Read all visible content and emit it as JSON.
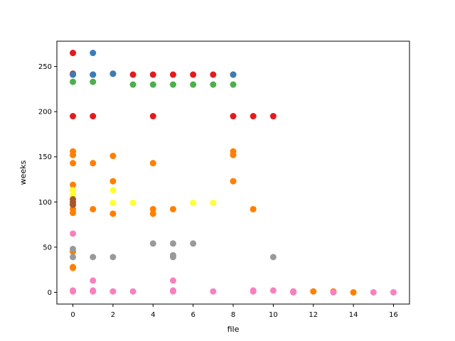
{
  "chart_data": {
    "type": "scatter",
    "xlabel": "file",
    "ylabel": "weeks",
    "xlim": [
      -0.8,
      16.8
    ],
    "ylim": [
      -13,
      278
    ],
    "xticks": [
      0,
      2,
      4,
      6,
      8,
      10,
      12,
      14,
      16
    ],
    "yticks": [
      0,
      50,
      100,
      150,
      200,
      250
    ],
    "grid": false,
    "colors": {
      "red": "#e41a1c",
      "blue": "#377eb8",
      "green": "#4daf4a",
      "orange": "#ff7f00",
      "yellow": "#ffff33",
      "brown": "#a65628",
      "pink": "#f781bf",
      "gray": "#999999"
    },
    "series": [
      {
        "color": "#e41a1c",
        "points": [
          [
            0,
            265
          ],
          [
            0,
            242
          ],
          [
            0,
            241
          ],
          [
            0,
            195
          ],
          [
            1,
            241
          ],
          [
            1,
            195
          ],
          [
            2,
            242
          ],
          [
            3,
            241
          ],
          [
            4,
            241
          ],
          [
            4,
            195
          ],
          [
            5,
            241
          ],
          [
            6,
            241
          ],
          [
            7,
            241
          ],
          [
            8,
            241
          ],
          [
            8,
            195
          ],
          [
            9,
            195
          ],
          [
            10,
            195
          ]
        ]
      },
      {
        "color": "#377eb8",
        "points": [
          [
            0,
            241
          ],
          [
            1,
            265
          ],
          [
            1,
            241
          ],
          [
            2,
            242
          ],
          [
            8,
            241
          ]
        ]
      },
      {
        "color": "#4daf4a",
        "points": [
          [
            0,
            233
          ],
          [
            1,
            233
          ],
          [
            3,
            230
          ],
          [
            4,
            230
          ],
          [
            5,
            230
          ],
          [
            6,
            230
          ],
          [
            7,
            230
          ],
          [
            8,
            230
          ]
        ]
      },
      {
        "color": "#ff7f00",
        "points": [
          [
            0,
            156
          ],
          [
            0,
            152
          ],
          [
            0,
            143
          ],
          [
            0,
            119
          ],
          [
            0,
            113
          ],
          [
            0,
            97
          ],
          [
            0,
            92
          ],
          [
            0,
            88
          ],
          [
            0,
            45
          ],
          [
            0,
            28
          ],
          [
            0,
            27
          ],
          [
            1,
            143
          ],
          [
            1,
            92
          ],
          [
            2,
            151
          ],
          [
            2,
            123
          ],
          [
            2,
            87
          ],
          [
            4,
            143
          ],
          [
            4,
            92
          ],
          [
            4,
            87
          ],
          [
            5,
            92
          ],
          [
            8,
            156
          ],
          [
            8,
            152
          ],
          [
            8,
            123
          ],
          [
            9,
            92
          ],
          [
            11,
            1
          ],
          [
            12,
            1
          ],
          [
            13,
            1
          ],
          [
            14,
            0
          ]
        ]
      },
      {
        "color": "#ffff33",
        "points": [
          [
            0,
            113
          ],
          [
            0,
            108
          ],
          [
            2,
            113
          ],
          [
            2,
            99
          ],
          [
            3,
            99
          ],
          [
            6,
            99
          ],
          [
            7,
            99
          ]
        ]
      },
      {
        "color": "#a65628",
        "points": [
          [
            0,
            103
          ],
          [
            0,
            100
          ],
          [
            0,
            97
          ]
        ]
      },
      {
        "color": "#999999",
        "points": [
          [
            0,
            48
          ],
          [
            0,
            39
          ],
          [
            1,
            39
          ],
          [
            2,
            39
          ],
          [
            4,
            54
          ],
          [
            5,
            54
          ],
          [
            5,
            41
          ],
          [
            5,
            39
          ],
          [
            6,
            54
          ],
          [
            10,
            39
          ]
        ]
      },
      {
        "color": "#f781bf",
        "points": [
          [
            0,
            65
          ],
          [
            0,
            2
          ],
          [
            0,
            1
          ],
          [
            1,
            13
          ],
          [
            1,
            2
          ],
          [
            1,
            1
          ],
          [
            2,
            1
          ],
          [
            3,
            1
          ],
          [
            5,
            13
          ],
          [
            5,
            2
          ],
          [
            5,
            1
          ],
          [
            7,
            1
          ],
          [
            9,
            2
          ],
          [
            9,
            1
          ],
          [
            10,
            2
          ],
          [
            11,
            1
          ],
          [
            11,
            0
          ],
          [
            13,
            0
          ],
          [
            15,
            0
          ],
          [
            16,
            0
          ]
        ]
      }
    ]
  }
}
